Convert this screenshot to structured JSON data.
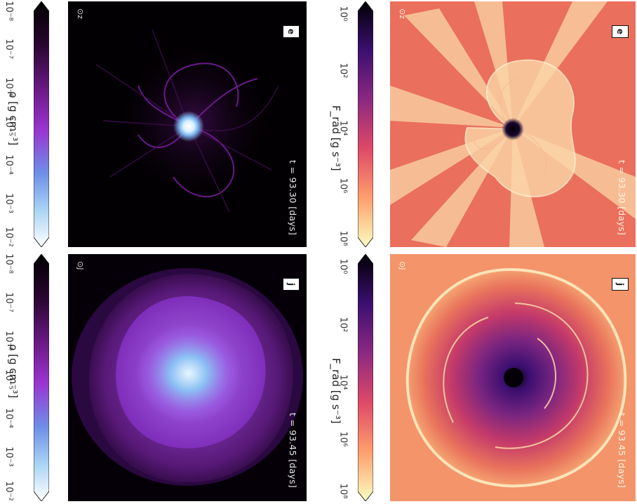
{
  "panels": {
    "top_left": {
      "badge": "e",
      "axis_symbol": "⊙z",
      "time_label": "t = 93.30 [days]"
    },
    "bottom_left": {
      "badge": "j",
      "axis_symbol": "⊙J",
      "time_label": "t = 93.45 [days]"
    },
    "top_right": {
      "badge": "e",
      "axis_symbol": "⊙z",
      "time_label": "t = 93.30 [days]"
    },
    "bottom_right": {
      "badge": "j",
      "axis_symbol": "⊙J",
      "time_label": "t = 93.45 [days]"
    }
  },
  "colorbars": {
    "density": {
      "label": "ρ [g cm⁻³]",
      "ticks": [
        "10⁻⁸",
        "10⁻⁷",
        "10⁻⁶",
        "10⁻⁵",
        "10⁻⁴",
        "10⁻³",
        "10⁻²"
      ]
    },
    "flux": {
      "label": "F_rad [g s⁻³]",
      "ticks": [
        "10⁰",
        "10²",
        "10⁴",
        "10⁶",
        "10⁸"
      ]
    }
  },
  "colors": {
    "density_map": [
      "#000000",
      "#1a0420",
      "#5a1470",
      "#9a30c8",
      "#6aa8ee",
      "#ffffff"
    ],
    "flux_map": [
      "#000004",
      "#3b0f70",
      "#8c2981",
      "#de4968",
      "#fe9f6d",
      "#fcfdbf"
    ]
  }
}
